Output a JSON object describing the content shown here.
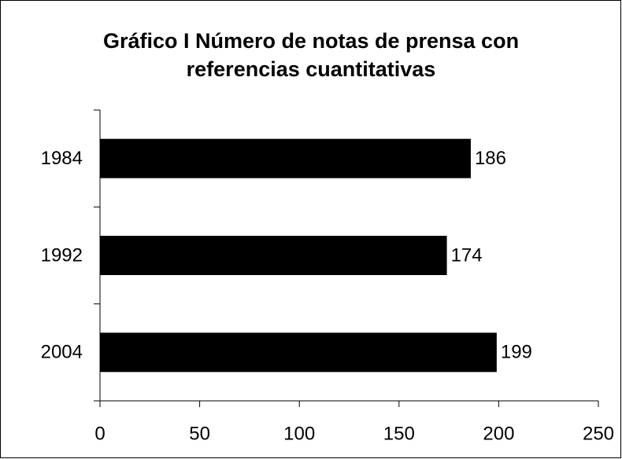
{
  "chart_data": {
    "type": "bar",
    "orientation": "horizontal",
    "title": "Gráfico I Número de notas de prensa con referencias cuantitativas",
    "categories": [
      "1984",
      "1992",
      "2004"
    ],
    "values": [
      186,
      174,
      199
    ],
    "color": "#000000",
    "xlim": [
      0,
      250
    ],
    "xticks": [
      0,
      50,
      100,
      150,
      200,
      250
    ],
    "grid": false
  }
}
